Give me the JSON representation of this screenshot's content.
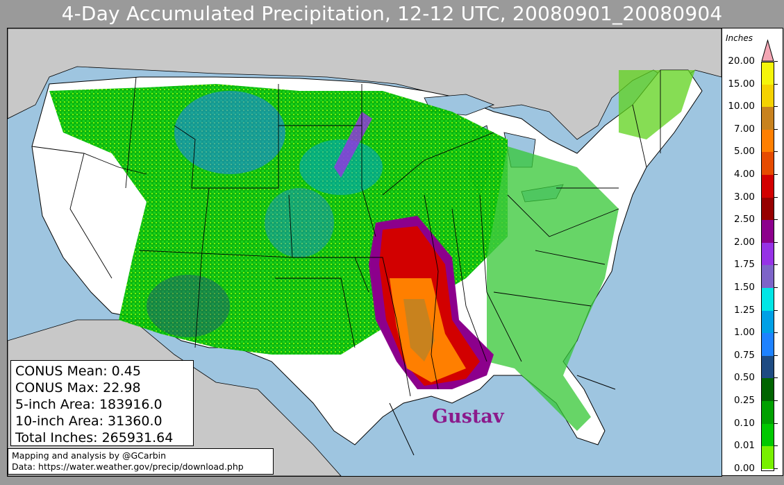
{
  "title": "4-Day Accumulated Precipitation, 12-12 UTC, 20080901_20080904",
  "stats": {
    "mean": "CONUS Mean: 0.45",
    "max": "CONUS Max: 22.98",
    "area5": "5-inch Area: 183916.0",
    "area10": "10-inch Area: 31360.0",
    "total": "Total Inches: 265931.64"
  },
  "credit": {
    "line1": "Mapping and analysis by @GCarbin",
    "line2": "Data: https://water.weather.gov/precip/download.php"
  },
  "annotation": {
    "storm_name": "Gustav",
    "color": "#8b1a8b"
  },
  "legend": {
    "title": "Inches",
    "levels": [
      {
        "label": "20.00",
        "color": "#f5f50a"
      },
      {
        "label": "15.00",
        "color": "#f5d200"
      },
      {
        "label": "10.00",
        "color": "#c8821e"
      },
      {
        "label": "7.00",
        "color": "#ff7f00"
      },
      {
        "label": "5.00",
        "color": "#e64b00"
      },
      {
        "label": "4.00",
        "color": "#d20000"
      },
      {
        "label": "3.00",
        "color": "#960000"
      },
      {
        "label": "2.50",
        "color": "#8c008c"
      },
      {
        "label": "2.00",
        "color": "#9632e6"
      },
      {
        "label": "1.75",
        "color": "#7d64c8"
      },
      {
        "label": "1.50",
        "color": "#00e6e6"
      },
      {
        "label": "1.25",
        "color": "#00a0e6"
      },
      {
        "label": "1.00",
        "color": "#1e82ff"
      },
      {
        "label": "0.75",
        "color": "#1e4b82"
      },
      {
        "label": "0.50",
        "color": "#006400"
      },
      {
        "label": "0.25",
        "color": "#00a000"
      },
      {
        "label": "0.10",
        "color": "#00c800"
      },
      {
        "label": "0.01",
        "color": "#78f000"
      },
      {
        "label": "0.00",
        "color": "#ffffff"
      }
    ],
    "extend_color": "#f4a6b4"
  },
  "colors": {
    "ocean": "#9ec5e0",
    "land_outside": "#c8c8c8",
    "no_precip": "#ffffff",
    "background": "#9a9a9a"
  }
}
